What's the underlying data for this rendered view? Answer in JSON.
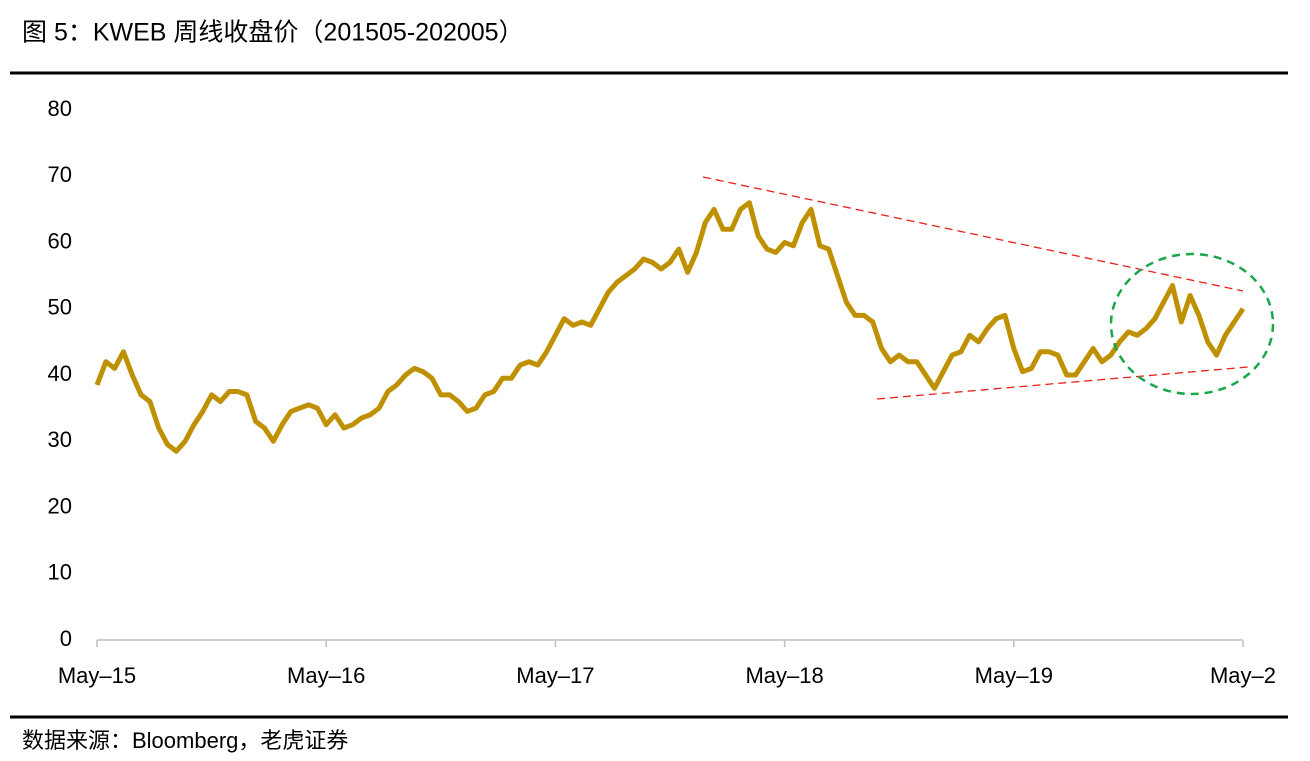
{
  "chart_data": {
    "type": "line",
    "title": "图 5：KWEB 周线收盘价（201505-202005）",
    "source": "数据来源：Bloomberg，老虎证券",
    "categories": [
      "May–15",
      null,
      null,
      null,
      null,
      null,
      null,
      null,
      null,
      null,
      null,
      null,
      null,
      null,
      null,
      null,
      null,
      null,
      null,
      null,
      null,
      null,
      null,
      null,
      null,
      null,
      "May–16",
      null,
      null,
      null,
      null,
      null,
      null,
      null,
      null,
      null,
      null,
      null,
      null,
      null,
      null,
      null,
      null,
      null,
      null,
      null,
      null,
      null,
      null,
      null,
      null,
      null,
      "May–17",
      null,
      null,
      null,
      null,
      null,
      null,
      null,
      null,
      null,
      null,
      null,
      null,
      null,
      null,
      null,
      null,
      null,
      null,
      null,
      null,
      null,
      null,
      null,
      null,
      null,
      "May–18",
      null,
      null,
      null,
      null,
      null,
      null,
      null,
      null,
      null,
      null,
      null,
      null,
      null,
      null,
      null,
      null,
      null,
      null,
      null,
      null,
      null,
      null,
      null,
      null,
      null,
      "May–19",
      null,
      null,
      null,
      null,
      null,
      null,
      null,
      null,
      null,
      null,
      null,
      null,
      null,
      null,
      null,
      null,
      null,
      null,
      null,
      null,
      null,
      null,
      null,
      null,
      null,
      "May–2"
    ],
    "values": [
      38.5,
      42,
      41,
      43.5,
      40,
      37,
      36,
      32,
      29.5,
      28.5,
      30,
      32.5,
      34.5,
      37,
      36,
      37.5,
      37.5,
      37,
      33,
      32,
      30,
      32.5,
      34.5,
      35,
      35.5,
      35,
      32.5,
      34,
      32,
      32.5,
      33.5,
      34,
      35,
      37.5,
      38.5,
      40,
      41,
      40.5,
      39.5,
      37,
      37,
      36,
      34.5,
      35,
      37,
      37.5,
      39.5,
      39.5,
      41.5,
      42,
      41.5,
      43.5,
      46,
      48.5,
      47.5,
      48,
      47.5,
      50,
      52.5,
      54,
      55,
      56,
      57.5,
      57,
      56,
      57,
      59,
      55.5,
      58.5,
      63,
      65,
      62,
      62,
      65,
      66,
      61,
      59,
      58.5,
      60,
      59.5,
      63,
      65,
      59.5,
      59,
      55,
      51,
      49,
      49,
      48,
      44,
      42,
      43,
      42,
      42,
      40,
      38,
      40.5,
      43,
      43.5,
      46,
      45,
      47,
      48.5,
      49,
      44,
      40.5,
      41,
      43.5,
      43.5,
      43,
      40,
      40,
      42,
      44,
      42,
      43,
      45,
      46.5,
      46,
      47,
      48.5,
      51,
      53.5,
      48,
      52,
      49,
      45,
      43,
      46,
      48,
      50
    ],
    "color": "#bf9000",
    "ylim": [
      0,
      80
    ],
    "yticks": [
      0,
      10,
      20,
      30,
      40,
      50,
      60,
      70,
      80
    ]
  }
}
